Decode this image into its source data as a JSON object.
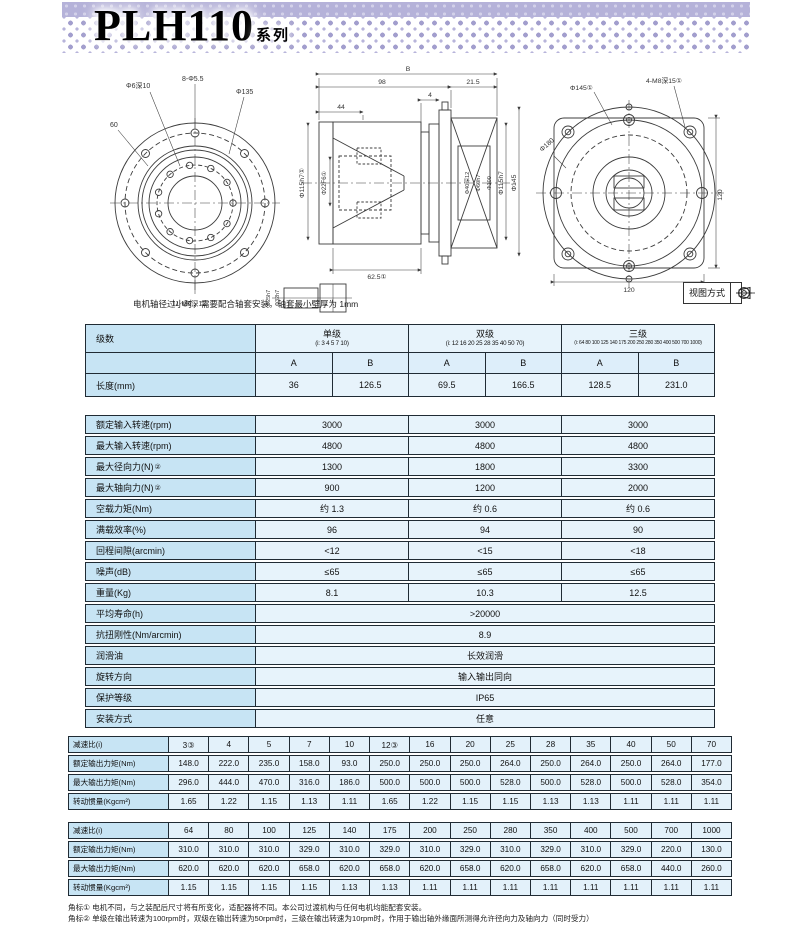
{
  "header": {
    "title": "PLH110",
    "suffix": "系列"
  },
  "drawings": {
    "note": "电机轴径过小时，需要配合轴套安装。轴套最小壁厚为 1mm",
    "view_method": {
      "label": "视图方式"
    },
    "front_view": {
      "labels": [
        "Φ6深10",
        "8-Φ5.5",
        "Φ135",
        "60",
        "11-M6深12"
      ]
    },
    "section_view": {
      "labels": [
        "B",
        "98",
        "21.5",
        "4",
        "44",
        "Φ115h7①",
        "Φ22F6①",
        "Φ40深12",
        "Φ60h7",
        "Φ100",
        "Φ115h7",
        "Φ145",
        "62.5①",
        "Φ25h7",
        "Φ32h7"
      ]
    },
    "rear_view": {
      "labels": [
        "Φ145①",
        "4-M8深15①",
        "Φ180",
        "120",
        "120"
      ]
    }
  },
  "spec": {
    "header": {
      "col0": "级数",
      "groups": [
        {
          "name": "单级",
          "ratios": "(i: 3 4 5 7 10)"
        },
        {
          "name": "双级",
          "ratios": "(i: 12 16 20 25 28 35 40 50 70)"
        },
        {
          "name": "三级",
          "ratios": "(i: 64 80 100 125 140 175 200 250 280 350 400 500 700 1000)"
        }
      ],
      "sub": [
        "A",
        "B",
        "A",
        "B",
        "A",
        "B"
      ]
    },
    "length": {
      "label": "长度(mm)",
      "values": [
        "36",
        "126.5",
        "69.5",
        "166.5",
        "128.5",
        "231.0"
      ]
    },
    "rows": [
      {
        "label": "额定输入转速(rpm)",
        "sup": "",
        "values": [
          "3000",
          "3000",
          "3000"
        ]
      },
      {
        "label": "最大输入转速(rpm)",
        "sup": "",
        "values": [
          "4800",
          "4800",
          "4800"
        ]
      },
      {
        "label": "最大径向力(N)",
        "sup": "②",
        "values": [
          "1300",
          "1800",
          "3300"
        ]
      },
      {
        "label": "最大轴向力(N)",
        "sup": "②",
        "values": [
          "900",
          "1200",
          "2000"
        ]
      },
      {
        "label": "空载力矩(Nm)",
        "sup": "",
        "values": [
          "约 1.3",
          "约 0.6",
          "约 0.6"
        ]
      },
      {
        "label": "满载效率(%)",
        "sup": "",
        "values": [
          "96",
          "94",
          "90"
        ]
      },
      {
        "label": "回程间隙(arcmin)",
        "sup": "",
        "values": [
          "<12",
          "<15",
          "<18"
        ]
      },
      {
        "label": "噪声(dB)",
        "sup": "",
        "values": [
          "≤65",
          "≤65",
          "≤65"
        ]
      },
      {
        "label": "重量(Kg)",
        "sup": "",
        "values": [
          "8.1",
          "10.3",
          "12.5"
        ]
      }
    ],
    "span_rows": [
      {
        "label": "平均寿命(h)",
        "value": ">20000"
      },
      {
        "label": "抗扭刚性(Nm/arcmin)",
        "value": "8.9"
      },
      {
        "label": "润滑油",
        "value": "长效润滑"
      },
      {
        "label": "旋转方向",
        "value": "输入输出同向"
      },
      {
        "label": "保护等级",
        "value": "IP65"
      },
      {
        "label": "安装方式",
        "value": "任意"
      }
    ]
  },
  "ratio1": {
    "rows": [
      {
        "label": "减速比(i)",
        "values": [
          "3③",
          "4",
          "5",
          "7",
          "10",
          "12③",
          "16",
          "20",
          "25",
          "28",
          "35",
          "40",
          "50",
          "70"
        ]
      },
      {
        "label": "额定输出力矩(Nm)",
        "values": [
          "148.0",
          "222.0",
          "235.0",
          "158.0",
          "93.0",
          "250.0",
          "250.0",
          "250.0",
          "264.0",
          "250.0",
          "264.0",
          "250.0",
          "264.0",
          "177.0"
        ]
      },
      {
        "label": "最大输出力矩(Nm)",
        "values": [
          "296.0",
          "444.0",
          "470.0",
          "316.0",
          "186.0",
          "500.0",
          "500.0",
          "500.0",
          "528.0",
          "500.0",
          "528.0",
          "500.0",
          "528.0",
          "354.0"
        ]
      },
      {
        "label": "转动惯量(Kgcm²)",
        "values": [
          "1.65",
          "1.22",
          "1.15",
          "1.13",
          "1.11",
          "1.65",
          "1.22",
          "1.15",
          "1.15",
          "1.13",
          "1.13",
          "1.11",
          "1.11",
          "1.11"
        ]
      }
    ]
  },
  "ratio2": {
    "rows": [
      {
        "label": "减速比(i)",
        "values": [
          "64",
          "80",
          "100",
          "125",
          "140",
          "175",
          "200",
          "250",
          "280",
          "350",
          "400",
          "500",
          "700",
          "1000"
        ]
      },
      {
        "label": "额定输出力矩(Nm)",
        "values": [
          "310.0",
          "310.0",
          "310.0",
          "329.0",
          "310.0",
          "329.0",
          "310.0",
          "329.0",
          "310.0",
          "329.0",
          "310.0",
          "329.0",
          "220.0",
          "130.0"
        ]
      },
      {
        "label": "最大输出力矩(Nm)",
        "values": [
          "620.0",
          "620.0",
          "620.0",
          "658.0",
          "620.0",
          "658.0",
          "620.0",
          "658.0",
          "620.0",
          "658.0",
          "620.0",
          "658.0",
          "440.0",
          "260.0"
        ]
      },
      {
        "label": "转动惯量(Kgcm²)",
        "values": [
          "1.15",
          "1.15",
          "1.15",
          "1.15",
          "1.13",
          "1.13",
          "1.11",
          "1.11",
          "1.11",
          "1.11",
          "1.11",
          "1.11",
          "1.11",
          "1.11"
        ]
      }
    ]
  },
  "footnotes": [
    "角标① 电机不同，与之装配后尺寸将有所变化，适配器将不同。本公司过渡机构与任何电机均能配套安装。",
    "角标② 单级在输出转速为100rpm时，双级在输出转速为50rpm时，三级在输出转速为10rpm时，作用于输出轴外缘面所测得允许径向力及轴向力（同时受力）"
  ]
}
